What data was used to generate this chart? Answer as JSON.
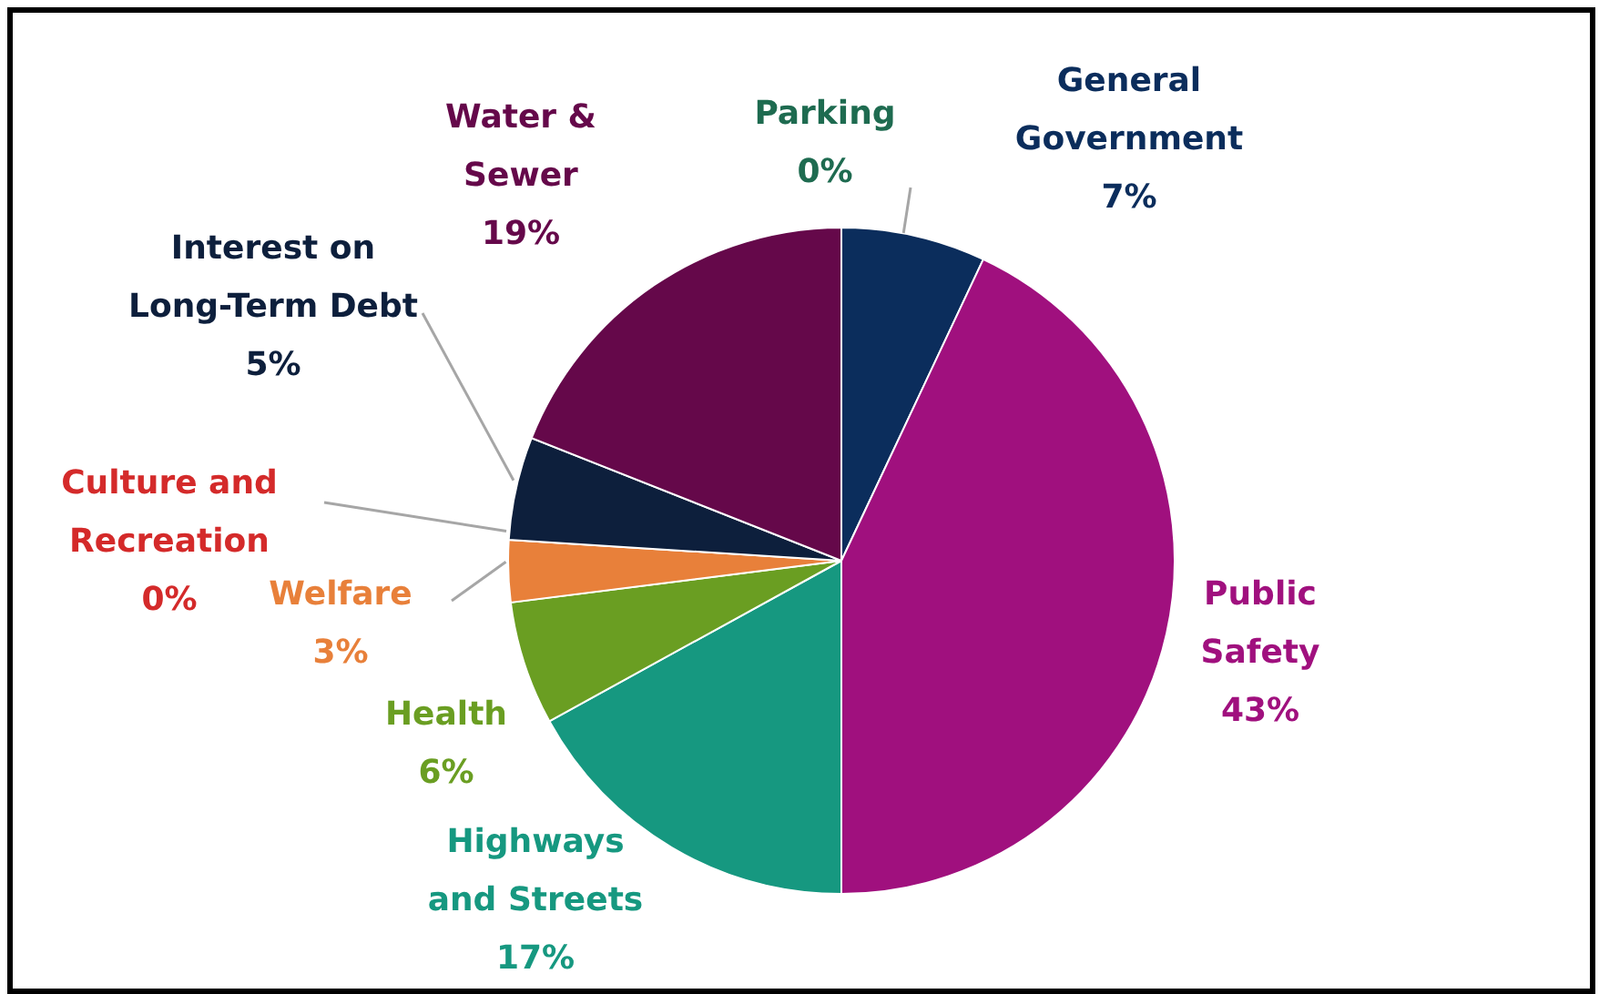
{
  "chart_data": {
    "type": "pie",
    "categories": [
      "Parking",
      "General Government",
      "Public Safety",
      "Highways and Streets",
      "Health",
      "Welfare",
      "Culture and Recreation",
      "Interest on Long-Term Debt",
      "Water & Sewer"
    ],
    "values": [
      0,
      7,
      43,
      17,
      6,
      3,
      0,
      5,
      19
    ],
    "colors": [
      "#1e6b50",
      "#0b2d5c",
      "#a0107e",
      "#169880",
      "#6a9e22",
      "#e8803a",
      "#d42a2a",
      "#0d1f3c",
      "#65084a"
    ],
    "value_labels": [
      "0%",
      "7%",
      "43%",
      "17%",
      "6%",
      "3%",
      "0%",
      "5%",
      "19%"
    ]
  }
}
